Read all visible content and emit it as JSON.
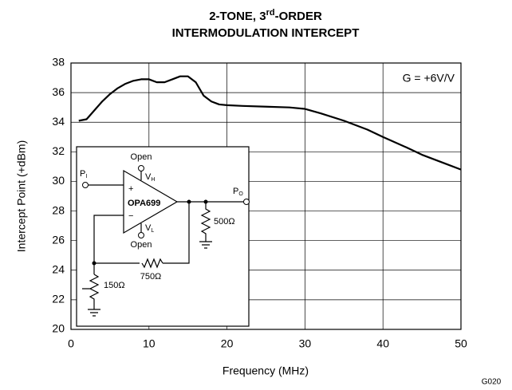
{
  "chart_data": {
    "type": "line",
    "title": [
      [
        "2-TONE, 3",
        "rd",
        "-ORDER"
      ],
      [
        "INTERMODULATION INTERCEPT"
      ]
    ],
    "xlabel": "Frequency (MHz)",
    "ylabel": "Intercept Point (+dBm)",
    "annotation": "G = +6V/V",
    "figure_id": "G020",
    "x": [
      1,
      2,
      3,
      4,
      5,
      6,
      7,
      8,
      9,
      10,
      11,
      12,
      13,
      14,
      15,
      16,
      17,
      18,
      19,
      20,
      22,
      25,
      28,
      30,
      32,
      35,
      38,
      40,
      43,
      45,
      48,
      50
    ],
    "series": [
      {
        "color": "#000000",
        "values": [
          34.1,
          34.2,
          34.8,
          35.4,
          35.9,
          36.3,
          36.6,
          36.8,
          36.9,
          36.9,
          36.7,
          36.7,
          36.9,
          37.1,
          37.1,
          36.7,
          35.8,
          35.4,
          35.2,
          35.15,
          35.1,
          35.05,
          35.0,
          34.9,
          34.6,
          34.1,
          33.5,
          33.0,
          32.3,
          31.8,
          31.2,
          30.8
        ]
      }
    ],
    "xlim": [
      0,
      50
    ],
    "xticks": [
      0,
      10,
      20,
      30,
      40,
      50
    ],
    "ylim": [
      20,
      38
    ],
    "yticks": [
      20,
      22,
      24,
      26,
      28,
      30,
      32,
      34,
      36,
      38
    ],
    "grid": true,
    "inset": {
      "open_top": "Open",
      "open_bottom": "Open",
      "vh": [
        "V",
        "H"
      ],
      "vl": [
        "V",
        "L"
      ],
      "pi": [
        "P",
        "I"
      ],
      "po": [
        "P",
        "O"
      ],
      "amp": "OPA699",
      "plus": "+",
      "minus": "−",
      "r_load": "500Ω",
      "r_feedback": "750Ω",
      "r_gain": "150Ω"
    }
  }
}
